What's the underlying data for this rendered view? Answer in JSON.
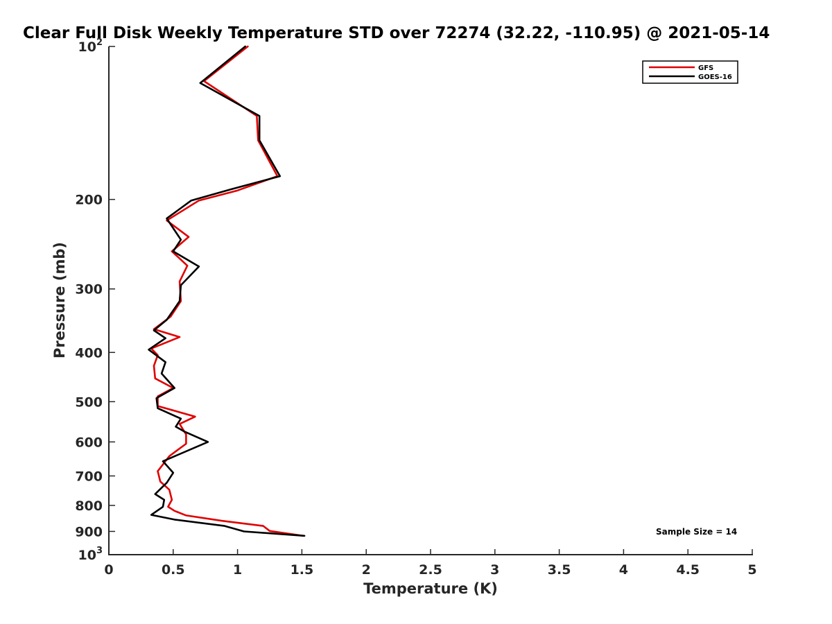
{
  "chart_data": {
    "type": "line",
    "title": "Clear Full Disk Weekly Temperature STD over 72274 (32.22, -110.95) @ 2021-05-14",
    "xlabel": "Temperature (K)",
    "ylabel": "Pressure (mb)",
    "xlim": [
      0,
      5
    ],
    "ylim": [
      100,
      1000
    ],
    "y_scale": "log",
    "y_reversed": true,
    "grid": false,
    "x_ticks": [
      {
        "v": 0,
        "label": "0"
      },
      {
        "v": 0.5,
        "label": "0.5"
      },
      {
        "v": 1,
        "label": "1"
      },
      {
        "v": 1.5,
        "label": "1.5"
      },
      {
        "v": 2,
        "label": "2"
      },
      {
        "v": 2.5,
        "label": "2.5"
      },
      {
        "v": 3,
        "label": "3"
      },
      {
        "v": 3.5,
        "label": "3.5"
      },
      {
        "v": 4,
        "label": "4"
      },
      {
        "v": 4.5,
        "label": "4.5"
      },
      {
        "v": 5,
        "label": "5"
      }
    ],
    "y_ticks": [
      {
        "v": 100,
        "base": "10",
        "exp": "2"
      },
      {
        "v": 200,
        "base": "200",
        "exp": ""
      },
      {
        "v": 300,
        "base": "300",
        "exp": ""
      },
      {
        "v": 400,
        "base": "400",
        "exp": ""
      },
      {
        "v": 500,
        "base": "500",
        "exp": ""
      },
      {
        "v": 600,
        "base": "600",
        "exp": ""
      },
      {
        "v": 700,
        "base": "700",
        "exp": ""
      },
      {
        "v": 800,
        "base": "800",
        "exp": ""
      },
      {
        "v": 900,
        "base": "900",
        "exp": ""
      },
      {
        "v": 1000,
        "base": "10",
        "exp": "3"
      }
    ],
    "legend": {
      "placement": "top-right"
    },
    "annotation": "Sample Size = 14",
    "series": [
      {
        "name": "GFS",
        "color": "#e00000",
        "points": [
          [
            1.08,
            100
          ],
          [
            0.74,
            117
          ],
          [
            1.15,
            137
          ],
          [
            1.16,
            153
          ],
          [
            1.31,
            180
          ],
          [
            1.0,
            192
          ],
          [
            0.7,
            201
          ],
          [
            0.45,
            220
          ],
          [
            0.62,
            237
          ],
          [
            0.49,
            253
          ],
          [
            0.61,
            270
          ],
          [
            0.55,
            290
          ],
          [
            0.56,
            317
          ],
          [
            0.48,
            340
          ],
          [
            0.35,
            360
          ],
          [
            0.55,
            373
          ],
          [
            0.33,
            393
          ],
          [
            0.38,
            405
          ],
          [
            0.35,
            425
          ],
          [
            0.36,
            450
          ],
          [
            0.5,
            470
          ],
          [
            0.38,
            488
          ],
          [
            0.38,
            510
          ],
          [
            0.67,
            535
          ],
          [
            0.55,
            553
          ],
          [
            0.6,
            580
          ],
          [
            0.6,
            605
          ],
          [
            0.47,
            640
          ],
          [
            0.38,
            685
          ],
          [
            0.4,
            718
          ],
          [
            0.47,
            745
          ],
          [
            0.49,
            780
          ],
          [
            0.46,
            805
          ],
          [
            0.51,
            820
          ],
          [
            0.6,
            837
          ],
          [
            0.88,
            858
          ],
          [
            1.2,
            878
          ],
          [
            1.25,
            898
          ],
          [
            1.51,
            918
          ]
        ]
      },
      {
        "name": "GOES-16",
        "color": "#000000",
        "points": [
          [
            1.06,
            100
          ],
          [
            0.71,
            118
          ],
          [
            1.17,
            137
          ],
          [
            1.17,
            153
          ],
          [
            1.33,
            180
          ],
          [
            0.95,
            191
          ],
          [
            0.64,
            201
          ],
          [
            0.45,
            218
          ],
          [
            0.56,
            240
          ],
          [
            0.5,
            253
          ],
          [
            0.7,
            271
          ],
          [
            0.56,
            295
          ],
          [
            0.55,
            317
          ],
          [
            0.45,
            345
          ],
          [
            0.35,
            362
          ],
          [
            0.44,
            375
          ],
          [
            0.31,
            395
          ],
          [
            0.44,
            418
          ],
          [
            0.41,
            440
          ],
          [
            0.51,
            470
          ],
          [
            0.37,
            492
          ],
          [
            0.38,
            515
          ],
          [
            0.56,
            540
          ],
          [
            0.52,
            560
          ],
          [
            0.59,
            573
          ],
          [
            0.77,
            600
          ],
          [
            0.42,
            655
          ],
          [
            0.5,
            690
          ],
          [
            0.45,
            722
          ],
          [
            0.36,
            760
          ],
          [
            0.43,
            780
          ],
          [
            0.42,
            805
          ],
          [
            0.33,
            835
          ],
          [
            0.51,
            853
          ],
          [
            0.9,
            878
          ],
          [
            1.05,
            900
          ],
          [
            1.52,
            918
          ]
        ]
      }
    ]
  }
}
